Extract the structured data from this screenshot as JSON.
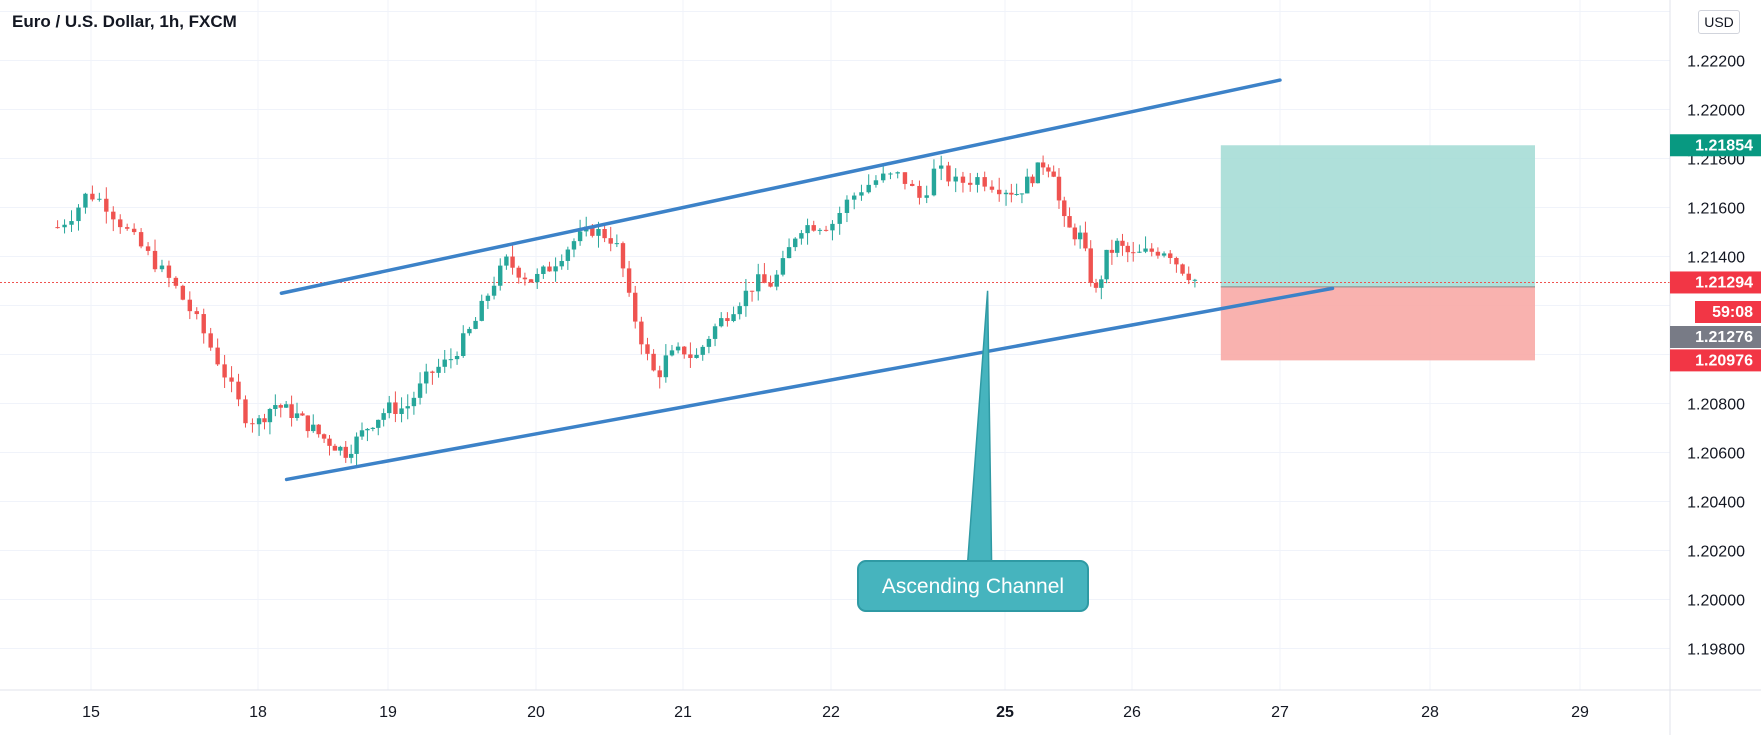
{
  "header": {
    "title": "Euro / U.S. Dollar, 1h, FXCM",
    "currency_button": "USD"
  },
  "chart_data": {
    "type": "candlestick",
    "symbol": "EUR/USD",
    "interval": "1h",
    "source": "FXCM",
    "ylim": [
      1.1965,
      1.2243
    ],
    "y_ticks": [
      1.198,
      1.2,
      1.202,
      1.204,
      1.206,
      1.208,
      1.214,
      1.216,
      1.218,
      1.22,
      1.222
    ],
    "y_tick_labels": [
      "1.19800",
      "1.20000",
      "1.20200",
      "1.20400",
      "1.20600",
      "1.20800",
      "1.21400",
      "1.21600",
      "1.21800",
      "1.22000",
      "1.22200"
    ],
    "x_ticks": [
      {
        "label": "15",
        "day": 0,
        "bold": false
      },
      {
        "label": "18",
        "day": 1,
        "bold": false
      },
      {
        "label": "19",
        "day": 2,
        "bold": false
      },
      {
        "label": "20",
        "day": 3,
        "bold": false
      },
      {
        "label": "21",
        "day": 4,
        "bold": false
      },
      {
        "label": "22",
        "day": 5,
        "bold": false
      },
      {
        "label": "25",
        "day": 6,
        "bold": true
      },
      {
        "label": "26",
        "day": 7,
        "bold": false
      },
      {
        "label": "27",
        "day": 8,
        "bold": false
      },
      {
        "label": "28",
        "day": 9,
        "bold": false
      },
      {
        "label": "29",
        "day": 10,
        "bold": false
      }
    ],
    "grid": true,
    "colors": {
      "up": "#26a69a",
      "down": "#ef5350",
      "channel": "#3c82c8",
      "callout": "#46b4be",
      "target_zone": "#a1dad3",
      "stop_zone": "#f8aaa6"
    },
    "close_path": [
      [
        -0.2,
        1.2152
      ],
      [
        -0.1,
        1.2158
      ],
      [
        -0.02,
        1.2166
      ],
      [
        0.08,
        1.2162
      ],
      [
        0.22,
        1.215
      ],
      [
        0.35,
        1.214
      ],
      [
        0.5,
        1.2128
      ],
      [
        0.65,
        1.2112
      ],
      [
        0.8,
        1.2092
      ],
      [
        0.92,
        1.2075
      ],
      [
        1.0,
        1.2072
      ],
      [
        1.12,
        1.208
      ],
      [
        1.3,
        1.2075
      ],
      [
        1.5,
        1.2066
      ],
      [
        1.68,
        1.206
      ],
      [
        1.85,
        1.2071
      ],
      [
        2.0,
        1.2078
      ],
      [
        2.12,
        1.2078
      ],
      [
        2.28,
        1.2092
      ],
      [
        2.42,
        1.2098
      ],
      [
        2.58,
        1.2112
      ],
      [
        2.7,
        1.2128
      ],
      [
        2.8,
        1.2138
      ],
      [
        2.88,
        1.2134
      ],
      [
        2.98,
        1.213
      ],
      [
        3.1,
        1.2136
      ],
      [
        3.25,
        1.2146
      ],
      [
        3.38,
        1.2151
      ],
      [
        3.5,
        1.2148
      ],
      [
        3.57,
        1.2142
      ],
      [
        3.62,
        1.2125
      ],
      [
        3.75,
        1.21
      ],
      [
        3.82,
        1.209
      ],
      [
        3.88,
        1.2098
      ],
      [
        4.0,
        1.2102
      ],
      [
        4.08,
        1.2098
      ],
      [
        4.2,
        1.211
      ],
      [
        4.35,
        1.212
      ],
      [
        4.5,
        1.213
      ],
      [
        4.58,
        1.2128
      ],
      [
        4.65,
        1.2133
      ],
      [
        4.78,
        1.2152
      ],
      [
        4.88,
        1.2153
      ],
      [
        5.0,
        1.2153
      ],
      [
        5.1,
        1.2163
      ],
      [
        5.18,
        1.2168
      ],
      [
        5.28,
        1.2172
      ],
      [
        5.4,
        1.2173
      ],
      [
        5.52,
        1.2163
      ],
      [
        5.6,
        1.2176
      ],
      [
        5.72,
        1.217
      ],
      [
        5.85,
        1.2172
      ],
      [
        5.98,
        1.2168
      ],
      [
        6.1,
        1.2166
      ],
      [
        6.22,
        1.2173
      ],
      [
        6.3,
        1.2178
      ],
      [
        6.38,
        1.2176
      ],
      [
        6.45,
        1.2155
      ],
      [
        6.52,
        1.215
      ],
      [
        6.6,
        1.2148
      ],
      [
        6.68,
        1.213
      ],
      [
        6.72,
        1.2125
      ],
      [
        6.8,
        1.214
      ],
      [
        6.88,
        1.2145
      ],
      [
        7.0,
        1.214
      ],
      [
        7.12,
        1.2142
      ],
      [
        7.24,
        1.2143
      ],
      [
        7.32,
        1.2136
      ],
      [
        7.38,
        1.2133
      ],
      [
        7.45,
        1.2129
      ]
    ],
    "last_price": "1.21294",
    "countdown": "59:08",
    "price_markers": [
      {
        "label": "1.21854",
        "value": 1.21854,
        "color": "#089981"
      },
      {
        "label": "1.21294",
        "value": 1.21294,
        "color": "#f23645"
      },
      {
        "label": "1.21276",
        "value": 1.21276,
        "color": "#787b86"
      },
      {
        "label": "1.20976",
        "value": 1.20976,
        "color": "#f23645"
      }
    ],
    "channel_upper": [
      [
        1.18,
        1.2125
      ],
      [
        8.0,
        1.2212
      ]
    ],
    "channel_lower": [
      [
        1.22,
        1.2049
      ],
      [
        8.35,
        1.2127
      ]
    ],
    "position": {
      "x_start": 7.6,
      "x_end": 9.7,
      "entry": 1.21276,
      "target": 1.21854,
      "stop": 1.20976
    },
    "annotation": {
      "text": "Ascending Channel",
      "pointer_to": [
        5.9,
        1.2126
      ]
    }
  }
}
